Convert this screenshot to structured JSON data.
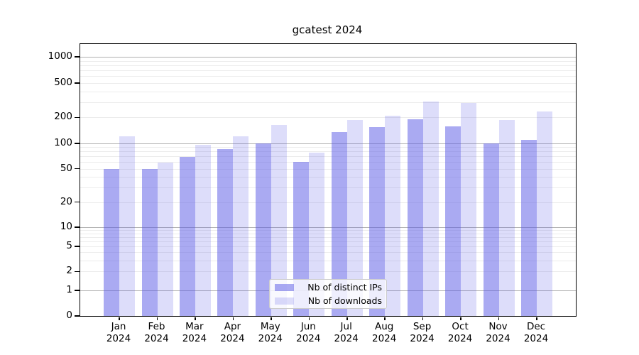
{
  "title": "gcatest 2024",
  "chart_data": {
    "type": "bar",
    "title": "gcatest 2024",
    "categories": [
      "Jan 2024",
      "Feb 2024",
      "Mar 2024",
      "Apr 2024",
      "May 2024",
      "Jun 2024",
      "Jul 2024",
      "Aug 2024",
      "Sep 2024",
      "Oct 2024",
      "Nov 2024",
      "Dec 2024"
    ],
    "series": [
      {
        "name": "Nb of distinct IPs",
        "color": "#5555E680",
        "values": [
          50,
          50,
          69,
          86,
          100,
          60,
          135,
          155,
          190,
          157,
          100,
          110
        ]
      },
      {
        "name": "Nb of downloads",
        "color": "#5555E633",
        "values": [
          120,
          59,
          97,
          120,
          165,
          78,
          187,
          207,
          305,
          291,
          185,
          234
        ]
      }
    ],
    "xlabel": "",
    "ylabel": "",
    "y_ticks": [
      1000,
      500,
      200,
      100,
      50,
      20,
      10,
      5,
      2,
      1,
      0
    ],
    "y_scale": "symlog",
    "ylim": [
      0,
      1400
    ],
    "grid": "horizontal, log minors light + decade lines darker",
    "legend_position": "lower center",
    "colors": {
      "bar_base": "#5555e6",
      "grid_major": "#b0b0b0",
      "grid_minor": "#ececec",
      "axes": "#000000",
      "background": "#ffffff"
    }
  }
}
